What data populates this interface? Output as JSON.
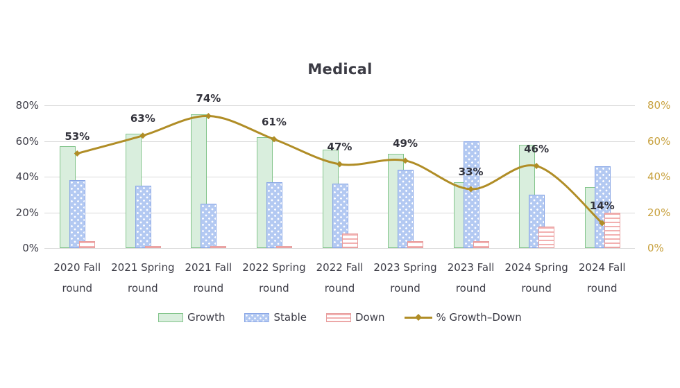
{
  "chart_data": {
    "type": "bar",
    "subtype": "grouped-bars-with-line-overlay",
    "title": "Medical",
    "categories": [
      "2020 Fall",
      "2021 Spring",
      "2021 Fall",
      "2022 Spring",
      "2022 Fall",
      "2023 Spring",
      "2023 Fall",
      "2024 Spring",
      "2024 Fall"
    ],
    "category_suffix": "round",
    "series": [
      {
        "name": "Growth",
        "type": "bar",
        "style": "growth",
        "values": [
          57,
          64,
          75,
          62,
          55,
          53,
          37,
          58,
          34
        ]
      },
      {
        "name": "Stable",
        "type": "bar",
        "style": "stable",
        "values": [
          38,
          35,
          25,
          37,
          36,
          44,
          60,
          30,
          46
        ]
      },
      {
        "name": "Down",
        "type": "bar",
        "style": "down",
        "values": [
          4,
          1,
          1,
          1,
          8,
          4,
          4,
          12,
          20
        ]
      },
      {
        "name": "% Growth–Down",
        "type": "line",
        "style": "line",
        "values": [
          53,
          63,
          74,
          61,
          47,
          49,
          33,
          46,
          14
        ],
        "data_labels": [
          "53%",
          "63%",
          "74%",
          "61%",
          "47%",
          "49%",
          "33%",
          "46%",
          "14%"
        ]
      }
    ],
    "axis_left": {
      "ticks": [
        "0%",
        "20%",
        "40%",
        "60%",
        "80%"
      ],
      "min": 0,
      "max": 80,
      "grid": true
    },
    "axis_right": {
      "ticks": [
        "0%",
        "20%",
        "40%",
        "60%",
        "80%"
      ],
      "min": 0,
      "max": 80
    },
    "legend_position": "bottom",
    "colors": {
      "growth_fill": "#d9eedd",
      "growth_border": "#82c48a",
      "stable_fill": "#b3c9f2",
      "stable_border": "#8aa7e6",
      "down_stripe": "#f2b0b0",
      "down_border": "#e79e9e",
      "line": "#b08d26",
      "axis_left_text": "#3d3d47",
      "axis_right_text": "#c8a13e",
      "gridline": "#d9d9d9",
      "title_text": "#3b3b44"
    }
  }
}
